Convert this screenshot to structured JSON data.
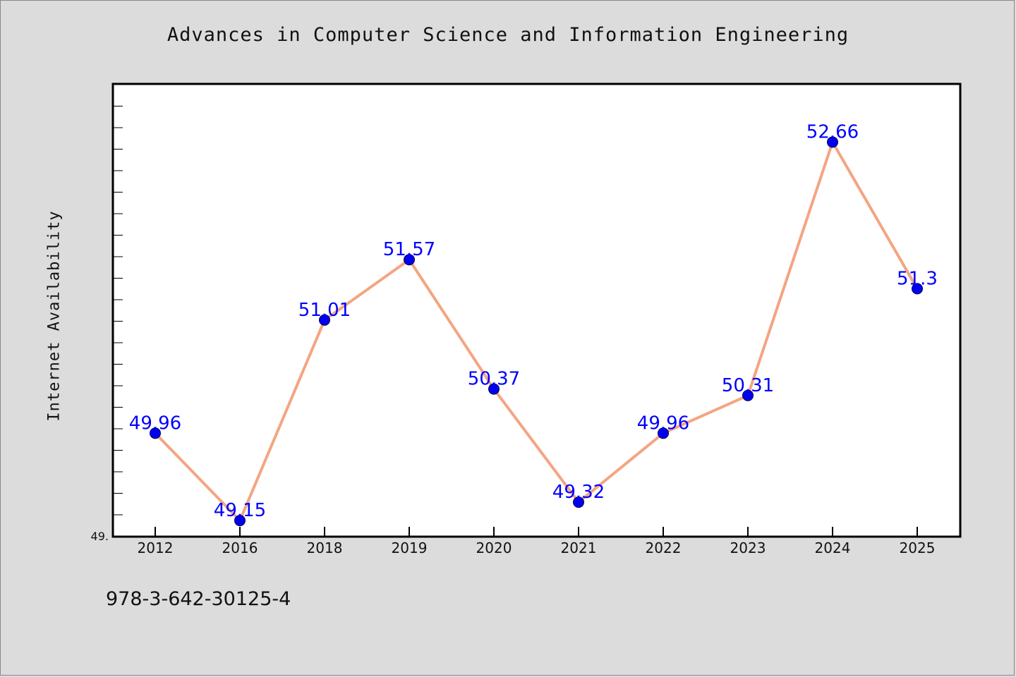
{
  "title": "Advances in Computer Science and Information Engineering",
  "ylabel": "Internet Availability",
  "footer_text": "978-3-642-30125-4",
  "y_axis_min_label": "49.",
  "colors": {
    "background": "#dcdcdc",
    "plot_background": "#ffffff",
    "line": "#f4a582",
    "marker": "#0000ee",
    "data_label": "#0000ff"
  },
  "chart_data": {
    "type": "line",
    "title": "Advances in Computer Science and Information Engineering",
    "xlabel": "",
    "ylabel": "Internet Availability",
    "categories": [
      "2012",
      "2016",
      "2018",
      "2019",
      "2020",
      "2021",
      "2022",
      "2023",
      "2024",
      "2025"
    ],
    "series": [
      {
        "values": [
          49.96,
          49.15,
          51.01,
          51.57,
          50.37,
          49.32,
          49.96,
          50.31,
          52.66,
          51.3
        ],
        "data_labels": [
          "49.96",
          "49.15",
          "51.01",
          "51.57",
          "50.37",
          "49.32",
          "49.96",
          "50.31",
          "52.66",
          "51.3"
        ]
      }
    ],
    "ylim": [
      49.0,
      53.2
    ],
    "grid": false,
    "legend": "none"
  }
}
